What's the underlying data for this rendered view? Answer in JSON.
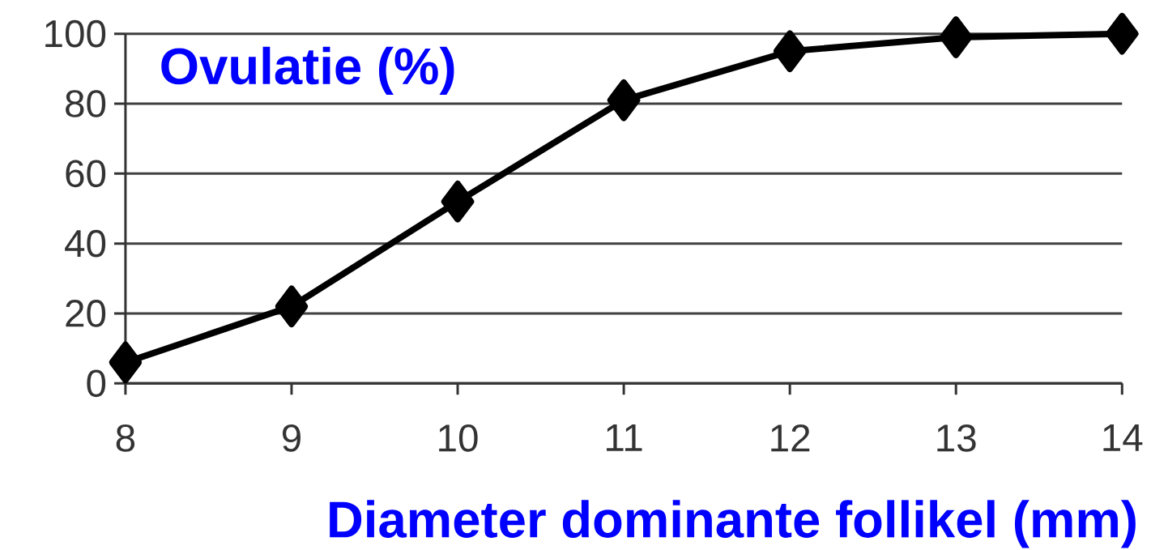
{
  "chart_data": {
    "type": "line",
    "ylabel": "Ovulatie (%)",
    "xlabel": "Diameter dominante follikel (mm)",
    "x": [
      8,
      9,
      10,
      11,
      12,
      13,
      14
    ],
    "values": [
      6,
      22,
      52,
      81,
      95,
      99,
      100
    ],
    "color": "#000000",
    "marker": "diamond",
    "line_style": "solid",
    "grid": "y",
    "xlim": [
      8,
      14
    ],
    "ylim": [
      0,
      100
    ],
    "xticks": [
      8,
      9,
      10,
      11,
      12,
      13,
      14
    ],
    "yticks": [
      0,
      20,
      40,
      60,
      80,
      100
    ]
  }
}
